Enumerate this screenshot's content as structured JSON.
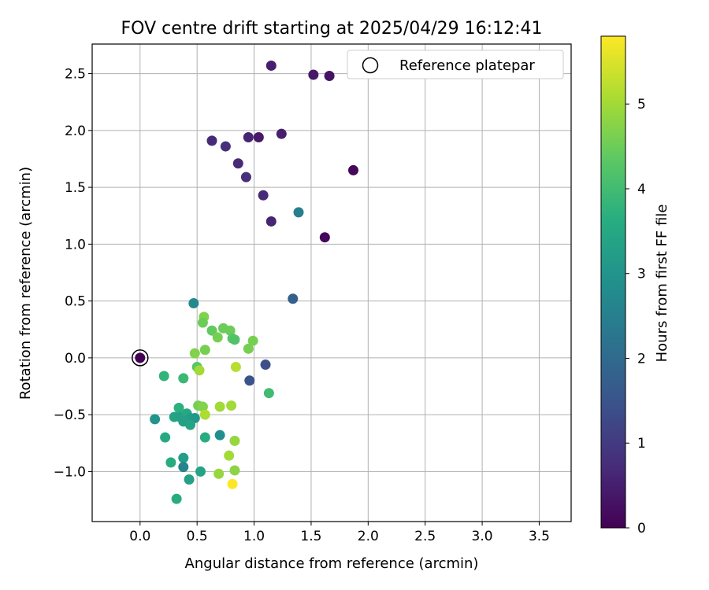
{
  "chart_data": {
    "type": "scatter",
    "title": "FOV centre drift starting at 2025/04/29 16:12:41",
    "xlabel": "Angular distance from reference (arcmin)",
    "ylabel": "Rotation from reference (arcmin)",
    "xlim": [
      -0.42,
      3.78
    ],
    "ylim": [
      -1.44,
      2.76
    ],
    "xticks": [
      0.0,
      0.5,
      1.0,
      1.5,
      2.0,
      2.5,
      3.0,
      3.5
    ],
    "yticks": [
      -1.0,
      -0.5,
      0.0,
      0.5,
      1.0,
      1.5,
      2.0,
      2.5
    ],
    "xtick_labels": [
      "0.0",
      "0.5",
      "1.0",
      "1.5",
      "2.0",
      "2.5",
      "3.0",
      "3.5"
    ],
    "ytick_labels": [
      "−1.0",
      "−0.5",
      "0.0",
      "0.5",
      "1.0",
      "1.5",
      "2.0",
      "2.5"
    ],
    "grid": true,
    "legend": {
      "position": "top-right",
      "entries": [
        "Reference platepar"
      ]
    },
    "reference_point": {
      "x": 0.0,
      "y": 0.0
    },
    "colorbar": {
      "label": "Hours from first FF file",
      "range": [
        0,
        5.8
      ],
      "ticks": [
        0,
        1,
        2,
        3,
        4,
        5
      ],
      "tick_labels": [
        "0",
        "1",
        "2",
        "3",
        "4",
        "5"
      ],
      "colormap": "viridis"
    },
    "points": [
      {
        "x": 0.0,
        "y": 0.0,
        "t": 0.0
      },
      {
        "x": 1.15,
        "y": 2.57,
        "t": 0.5
      },
      {
        "x": 1.52,
        "y": 2.49,
        "t": 0.4
      },
      {
        "x": 1.66,
        "y": 2.48,
        "t": 0.3
      },
      {
        "x": 0.63,
        "y": 1.91,
        "t": 0.7
      },
      {
        "x": 0.75,
        "y": 1.86,
        "t": 0.8
      },
      {
        "x": 0.95,
        "y": 1.94,
        "t": 0.6
      },
      {
        "x": 1.04,
        "y": 1.94,
        "t": 0.4
      },
      {
        "x": 1.24,
        "y": 1.97,
        "t": 0.5
      },
      {
        "x": 0.86,
        "y": 1.71,
        "t": 0.7
      },
      {
        "x": 0.93,
        "y": 1.59,
        "t": 0.8
      },
      {
        "x": 1.87,
        "y": 1.65,
        "t": 0.1
      },
      {
        "x": 1.08,
        "y": 1.43,
        "t": 0.7
      },
      {
        "x": 1.15,
        "y": 1.2,
        "t": 0.6
      },
      {
        "x": 1.39,
        "y": 1.28,
        "t": 2.5
      },
      {
        "x": 1.62,
        "y": 1.06,
        "t": 0.1
      },
      {
        "x": 1.34,
        "y": 0.52,
        "t": 1.8
      },
      {
        "x": 0.47,
        "y": 0.48,
        "t": 2.7
      },
      {
        "x": 0.56,
        "y": 0.36,
        "t": 4.7
      },
      {
        "x": 0.55,
        "y": 0.31,
        "t": 4.5
      },
      {
        "x": 0.63,
        "y": 0.24,
        "t": 4.4
      },
      {
        "x": 0.73,
        "y": 0.26,
        "t": 4.5
      },
      {
        "x": 0.79,
        "y": 0.24,
        "t": 4.5
      },
      {
        "x": 0.68,
        "y": 0.18,
        "t": 4.6
      },
      {
        "x": 0.81,
        "y": 0.17,
        "t": 4.3
      },
      {
        "x": 0.83,
        "y": 0.16,
        "t": 4.2
      },
      {
        "x": 0.99,
        "y": 0.15,
        "t": 4.6
      },
      {
        "x": 0.95,
        "y": 0.08,
        "t": 4.6
      },
      {
        "x": 0.57,
        "y": 0.07,
        "t": 4.6
      },
      {
        "x": 0.48,
        "y": 0.04,
        "t": 4.7
      },
      {
        "x": 1.1,
        "y": -0.06,
        "t": 1.4
      },
      {
        "x": 0.5,
        "y": -0.08,
        "t": 4.3
      },
      {
        "x": 0.52,
        "y": -0.11,
        "t": 5.0
      },
      {
        "x": 0.84,
        "y": -0.08,
        "t": 5.2
      },
      {
        "x": 0.21,
        "y": -0.16,
        "t": 3.8
      },
      {
        "x": 0.38,
        "y": -0.18,
        "t": 3.9
      },
      {
        "x": 0.96,
        "y": -0.2,
        "t": 1.5
      },
      {
        "x": 1.13,
        "y": -0.31,
        "t": 4.0
      },
      {
        "x": 0.34,
        "y": -0.44,
        "t": 3.7
      },
      {
        "x": 0.51,
        "y": -0.42,
        "t": 4.6
      },
      {
        "x": 0.55,
        "y": -0.43,
        "t": 4.7
      },
      {
        "x": 0.7,
        "y": -0.43,
        "t": 5.0
      },
      {
        "x": 0.8,
        "y": -0.42,
        "t": 5.0
      },
      {
        "x": 0.13,
        "y": -0.54,
        "t": 3.0
      },
      {
        "x": 0.3,
        "y": -0.52,
        "t": 3.4
      },
      {
        "x": 0.35,
        "y": -0.52,
        "t": 3.3
      },
      {
        "x": 0.41,
        "y": -0.49,
        "t": 3.5
      },
      {
        "x": 0.44,
        "y": -0.53,
        "t": 3.2
      },
      {
        "x": 0.48,
        "y": -0.53,
        "t": 3.1
      },
      {
        "x": 0.38,
        "y": -0.56,
        "t": 3.3
      },
      {
        "x": 0.44,
        "y": -0.59,
        "t": 3.4
      },
      {
        "x": 0.57,
        "y": -0.5,
        "t": 5.1
      },
      {
        "x": 0.22,
        "y": -0.7,
        "t": 3.5
      },
      {
        "x": 0.57,
        "y": -0.7,
        "t": 3.6
      },
      {
        "x": 0.7,
        "y": -0.68,
        "t": 2.9
      },
      {
        "x": 0.83,
        "y": -0.73,
        "t": 4.9
      },
      {
        "x": 0.27,
        "y": -0.92,
        "t": 3.6
      },
      {
        "x": 0.38,
        "y": -0.88,
        "t": 3.2
      },
      {
        "x": 0.38,
        "y": -0.96,
        "t": 2.6
      },
      {
        "x": 0.78,
        "y": -0.86,
        "t": 5.0
      },
      {
        "x": 0.53,
        "y": -1.0,
        "t": 3.4
      },
      {
        "x": 0.69,
        "y": -1.02,
        "t": 4.9
      },
      {
        "x": 0.83,
        "y": -0.99,
        "t": 4.8
      },
      {
        "x": 0.43,
        "y": -1.07,
        "t": 3.3
      },
      {
        "x": 0.81,
        "y": -1.11,
        "t": 5.8
      },
      {
        "x": 0.32,
        "y": -1.24,
        "t": 3.6
      }
    ]
  }
}
